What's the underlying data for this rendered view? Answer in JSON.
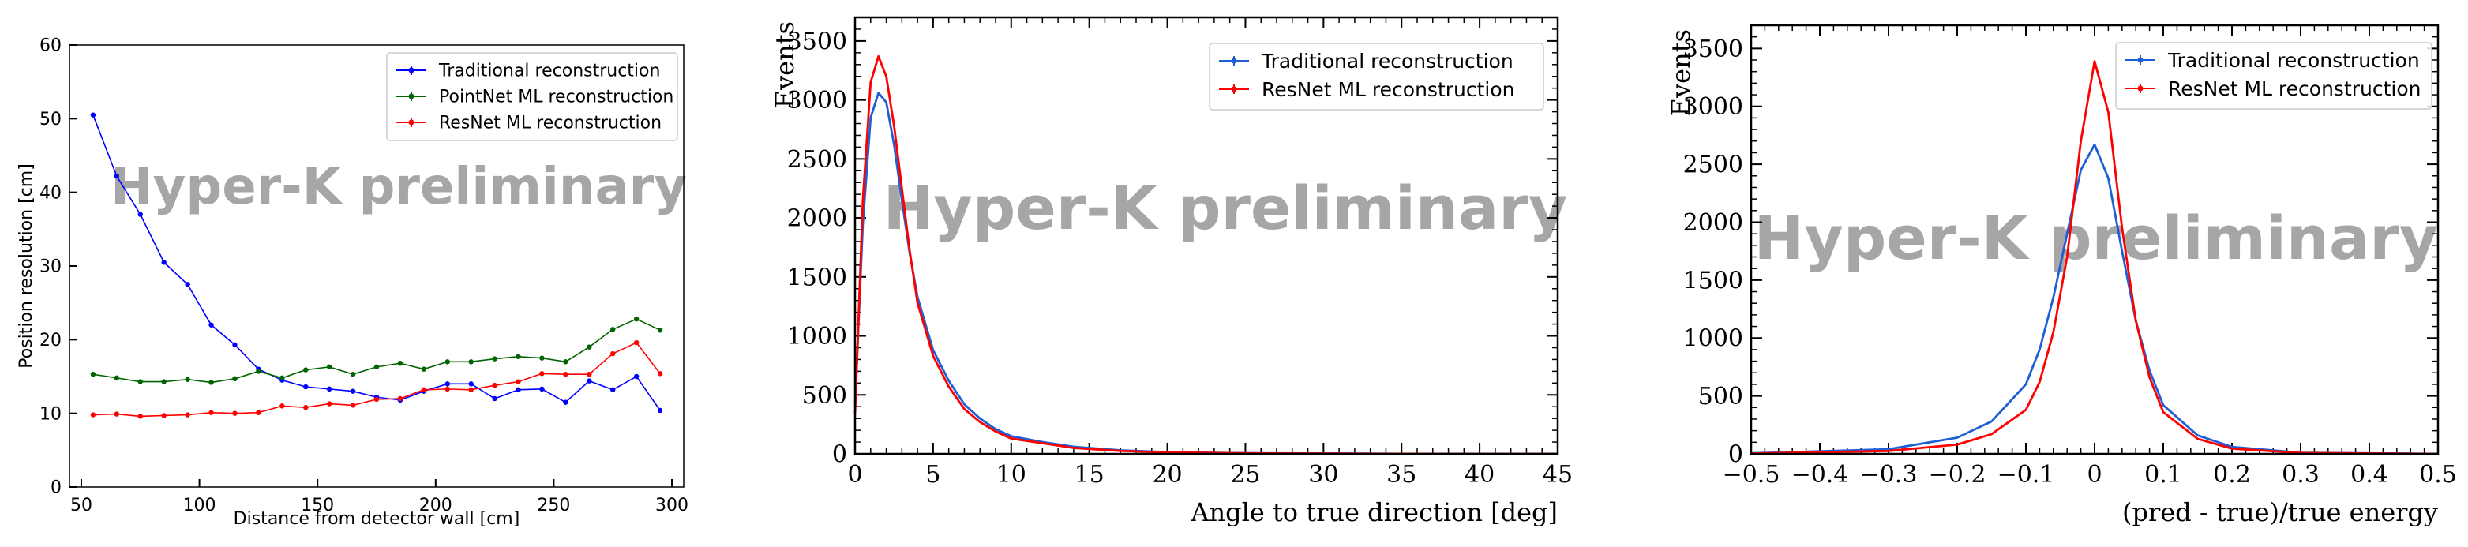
{
  "chart_data": [
    {
      "type": "line",
      "xlabel": "Distance from detector wall [cm]",
      "ylabel": "Position resolution [cm]",
      "xlim": [
        45,
        305
      ],
      "ylim": [
        0,
        60
      ],
      "xticks": [
        50,
        100,
        150,
        200,
        250,
        300
      ],
      "yticks": [
        0,
        10,
        20,
        30,
        40,
        50,
        60
      ],
      "legend_position": "top-right",
      "watermark": "Hyper-K preliminary",
      "x": [
        55,
        65,
        75,
        85,
        95,
        105,
        115,
        125,
        135,
        145,
        155,
        165,
        175,
        185,
        195,
        205,
        215,
        225,
        235,
        245,
        255,
        265,
        275,
        285,
        295
      ],
      "series": [
        {
          "name": "Traditional reconstruction",
          "color": "#0000ff",
          "values": [
            50.5,
            42.2,
            37.0,
            30.5,
            27.5,
            22.0,
            19.3,
            16.0,
            14.5,
            13.6,
            13.3,
            13.0,
            12.2,
            11.8,
            13.0,
            14.0,
            14.0,
            12.0,
            13.2,
            13.3,
            11.5,
            14.4,
            13.2,
            15.0,
            10.4
          ]
        },
        {
          "name": "PointNet ML reconstruction",
          "color": "#006400",
          "values": [
            15.3,
            14.8,
            14.3,
            14.3,
            14.6,
            14.2,
            14.7,
            15.7,
            14.8,
            15.9,
            16.3,
            15.3,
            16.3,
            16.8,
            16.0,
            17.0,
            17.0,
            17.4,
            17.7,
            17.5,
            17.0,
            19.0,
            21.4,
            22.8,
            21.3
          ]
        },
        {
          "name": "ResNet ML reconstruction",
          "color": "#ff0000",
          "values": [
            9.8,
            9.9,
            9.6,
            9.7,
            9.8,
            10.1,
            10.0,
            10.1,
            11.0,
            10.8,
            11.3,
            11.1,
            11.9,
            12.0,
            13.2,
            13.3,
            13.2,
            13.8,
            14.3,
            15.4,
            15.3,
            15.3,
            18.1,
            19.6,
            15.4
          ]
        }
      ]
    },
    {
      "type": "histogram",
      "xlabel": "Angle to true direction [deg]",
      "ylabel": "Events",
      "xlim": [
        0,
        45
      ],
      "ylim": [
        0,
        3700
      ],
      "xticks": [
        0,
        5,
        10,
        15,
        20,
        25,
        30,
        35,
        40,
        45
      ],
      "yticks": [
        0,
        500,
        1000,
        1500,
        2000,
        2500,
        3000,
        3500
      ],
      "legend_position": "top-right",
      "watermark": "Hyper-K preliminary",
      "x": [
        0,
        0.5,
        1,
        1.5,
        2,
        2.5,
        3,
        3.5,
        4,
        5,
        6,
        7,
        8,
        9,
        10,
        12,
        14,
        17,
        20,
        25,
        30,
        35,
        40,
        45
      ],
      "series": [
        {
          "name": "Traditional reconstruction",
          "color": "#1f5fd6",
          "values": [
            420,
            1950,
            2850,
            3060,
            2980,
            2620,
            2150,
            1700,
            1330,
            880,
            620,
            420,
            300,
            210,
            150,
            100,
            60,
            30,
            15,
            6,
            3,
            1,
            0,
            0
          ]
        },
        {
          "name": "ResNet ML reconstruction",
          "color": "#ff0000",
          "values": [
            340,
            2150,
            3150,
            3370,
            3200,
            2780,
            2250,
            1720,
            1280,
            830,
            570,
            380,
            270,
            190,
            130,
            90,
            50,
            25,
            12,
            5,
            2,
            1,
            0,
            0
          ]
        }
      ]
    },
    {
      "type": "histogram",
      "xlabel": "(pred - true)/true energy",
      "ylabel": "Events",
      "xlim": [
        -0.5,
        0.5
      ],
      "ylim": [
        0,
        3700
      ],
      "xticks": [
        -0.5,
        -0.4,
        -0.3,
        -0.2,
        -0.1,
        0,
        0.1,
        0.2,
        0.3,
        0.4,
        0.5
      ],
      "xtick_labels": [
        "−0.5",
        "−0.4",
        "−0.3",
        "−0.2",
        "−0.1",
        "0",
        "0.1",
        "0.2",
        "0.3",
        "0.4",
        "0.5"
      ],
      "yticks": [
        0,
        500,
        1000,
        1500,
        2000,
        2500,
        3000,
        3500
      ],
      "legend_position": "top-right",
      "watermark": "Hyper-K preliminary",
      "x": [
        -0.5,
        -0.3,
        -0.2,
        -0.15,
        -0.1,
        -0.08,
        -0.06,
        -0.04,
        -0.02,
        0,
        0.02,
        0.04,
        0.06,
        0.08,
        0.1,
        0.15,
        0.2,
        0.3,
        0.5
      ],
      "series": [
        {
          "name": "Traditional reconstruction",
          "color": "#1f5fd6",
          "values": [
            5,
            40,
            140,
            280,
            600,
            900,
            1350,
            1900,
            2450,
            2670,
            2380,
            1750,
            1150,
            720,
            420,
            160,
            60,
            10,
            0
          ]
        },
        {
          "name": "ResNet ML reconstruction",
          "color": "#ff0000",
          "values": [
            3,
            25,
            80,
            170,
            380,
            620,
            1050,
            1700,
            2700,
            3390,
            2950,
            1950,
            1150,
            660,
            360,
            130,
            45,
            8,
            0
          ]
        }
      ]
    }
  ]
}
